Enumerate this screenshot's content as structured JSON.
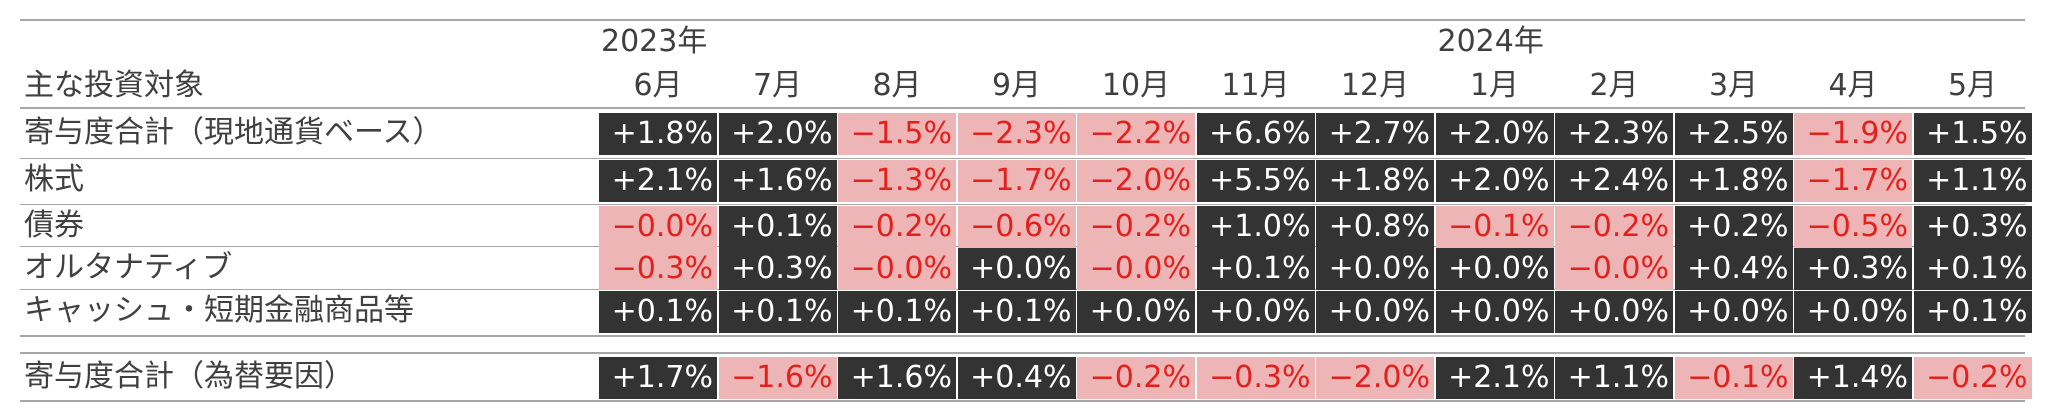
{
  "table": {
    "header_label": "主な投資対象",
    "years": [
      {
        "label": "2023年",
        "col": 0
      },
      {
        "label": "2024年",
        "col": 7
      }
    ],
    "months": [
      "6月",
      "7月",
      "8月",
      "9月",
      "10月",
      "11月",
      "12月",
      "1月",
      "2月",
      "3月",
      "4月",
      "5月"
    ],
    "rows": [
      {
        "label": "寄与度合計（現地通貨ベース）",
        "values": [
          "+1.8%",
          "+2.0%",
          "−1.5%",
          "−2.3%",
          "−2.2%",
          "+6.6%",
          "+2.7%",
          "+2.0%",
          "+2.3%",
          "+2.5%",
          "−1.9%",
          "+1.5%"
        ],
        "styles": [
          "pos",
          "pos",
          "neg",
          "neg",
          "neg",
          "pos",
          "pos",
          "pos",
          "pos",
          "pos",
          "neg",
          "pos"
        ]
      },
      {
        "label": "株式",
        "values": [
          "+2.1%",
          "+1.6%",
          "−1.3%",
          "−1.7%",
          "−2.0%",
          "+5.5%",
          "+1.8%",
          "+2.0%",
          "+2.4%",
          "+1.8%",
          "−1.7%",
          "+1.1%"
        ],
        "styles": [
          "pos",
          "pos",
          "neg",
          "neg",
          "neg",
          "pos",
          "pos",
          "pos",
          "pos",
          "pos",
          "neg",
          "pos"
        ]
      },
      {
        "label": "債券",
        "values": [
          "−0.0%",
          "+0.1%",
          "−0.2%",
          "−0.6%",
          "−0.2%",
          "+1.0%",
          "+0.8%",
          "−0.1%",
          "−0.2%",
          "+0.2%",
          "−0.5%",
          "+0.3%"
        ],
        "styles": [
          "neg",
          "pos",
          "neg",
          "neg",
          "neg",
          "pos",
          "pos",
          "neg",
          "neg",
          "pos",
          "neg",
          "pos"
        ]
      },
      {
        "label": "オルタナティブ",
        "values": [
          "−0.3%",
          "+0.3%",
          "−0.0%",
          "+0.0%",
          "−0.0%",
          "+0.1%",
          "+0.0%",
          "+0.0%",
          "−0.0%",
          "+0.4%",
          "+0.3%",
          "+0.1%"
        ],
        "styles": [
          "neg",
          "pos",
          "neg",
          "pos",
          "neg",
          "pos",
          "pos",
          "pos",
          "neg",
          "pos",
          "pos",
          "pos"
        ]
      },
      {
        "label": "キャッシュ・短期金融商品等",
        "values": [
          "+0.1%",
          "+0.1%",
          "+0.1%",
          "+0.1%",
          "+0.0%",
          "+0.0%",
          "+0.0%",
          "+0.0%",
          "+0.0%",
          "+0.0%",
          "+0.0%",
          "+0.1%"
        ],
        "styles": [
          "pos",
          "pos",
          "pos",
          "pos",
          "pos",
          "pos",
          "pos",
          "pos",
          "pos",
          "pos",
          "pos",
          "pos"
        ]
      }
    ],
    "fx_row": {
      "label": "寄与度合計（為替要因）",
      "values": [
        "+1.7%",
        "−1.6%",
        "+1.6%",
        "+0.4%",
        "−0.2%",
        "−0.3%",
        "−2.0%",
        "+2.1%",
        "+1.1%",
        "−0.1%",
        "+1.4%",
        "−0.2%"
      ],
      "styles": [
        "pos",
        "neg",
        "pos",
        "pos",
        "neg",
        "neg",
        "neg",
        "pos",
        "pos",
        "neg",
        "pos",
        "neg"
      ]
    },
    "colors": {
      "positive_bg": "#333333",
      "positive_text": "#ffffff",
      "negative_bg": "#eeb5b6",
      "negative_text": "#e3201b"
    }
  }
}
